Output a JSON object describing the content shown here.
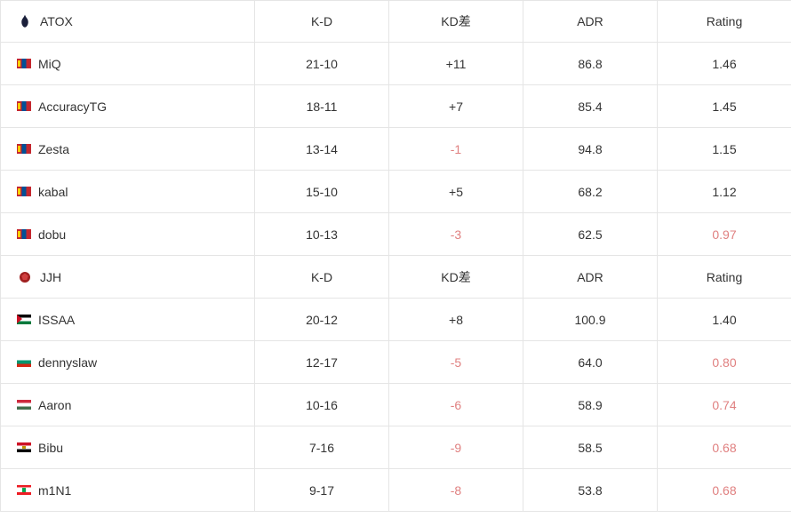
{
  "columns": {
    "kd": "K-D",
    "diff": "KD差",
    "adr": "ADR",
    "rating": "Rating"
  },
  "colors": {
    "text": "#333333",
    "negative": "#e08080",
    "border": "#e5e5e5"
  },
  "teams": [
    {
      "name": "ATOX",
      "logo": "atox",
      "players": [
        {
          "flag": "mn",
          "name": "MiQ",
          "kd": "21-10",
          "diff": "+11",
          "diff_neg": false,
          "adr": "86.8",
          "rating": "1.46",
          "rating_neg": false
        },
        {
          "flag": "mn",
          "name": "AccuracyTG",
          "kd": "18-11",
          "diff": "+7",
          "diff_neg": false,
          "adr": "85.4",
          "rating": "1.45",
          "rating_neg": false
        },
        {
          "flag": "mn",
          "name": "Zesta",
          "kd": "13-14",
          "diff": "-1",
          "diff_neg": true,
          "adr": "94.8",
          "rating": "1.15",
          "rating_neg": false
        },
        {
          "flag": "mn",
          "name": "kabal",
          "kd": "15-10",
          "diff": "+5",
          "diff_neg": false,
          "adr": "68.2",
          "rating": "1.12",
          "rating_neg": false
        },
        {
          "flag": "mn",
          "name": "dobu",
          "kd": "10-13",
          "diff": "-3",
          "diff_neg": true,
          "adr": "62.5",
          "rating": "0.97",
          "rating_neg": true
        }
      ]
    },
    {
      "name": "JJH",
      "logo": "jjh",
      "players": [
        {
          "flag": "ps",
          "name": "ISSAA",
          "kd": "20-12",
          "diff": "+8",
          "diff_neg": false,
          "adr": "100.9",
          "rating": "1.40",
          "rating_neg": false
        },
        {
          "flag": "bg",
          "name": "dennyslaw",
          "kd": "12-17",
          "diff": "-5",
          "diff_neg": true,
          "adr": "64.0",
          "rating": "0.80",
          "rating_neg": true
        },
        {
          "flag": "hu",
          "name": "Aaron",
          "kd": "10-16",
          "diff": "-6",
          "diff_neg": true,
          "adr": "58.9",
          "rating": "0.74",
          "rating_neg": true
        },
        {
          "flag": "eg",
          "name": "Bibu",
          "kd": "7-16",
          "diff": "-9",
          "diff_neg": true,
          "adr": "58.5",
          "rating": "0.68",
          "rating_neg": true
        },
        {
          "flag": "lb",
          "name": "m1N1",
          "kd": "9-17",
          "diff": "-8",
          "diff_neg": true,
          "adr": "53.8",
          "rating": "0.68",
          "rating_neg": true
        }
      ]
    }
  ]
}
